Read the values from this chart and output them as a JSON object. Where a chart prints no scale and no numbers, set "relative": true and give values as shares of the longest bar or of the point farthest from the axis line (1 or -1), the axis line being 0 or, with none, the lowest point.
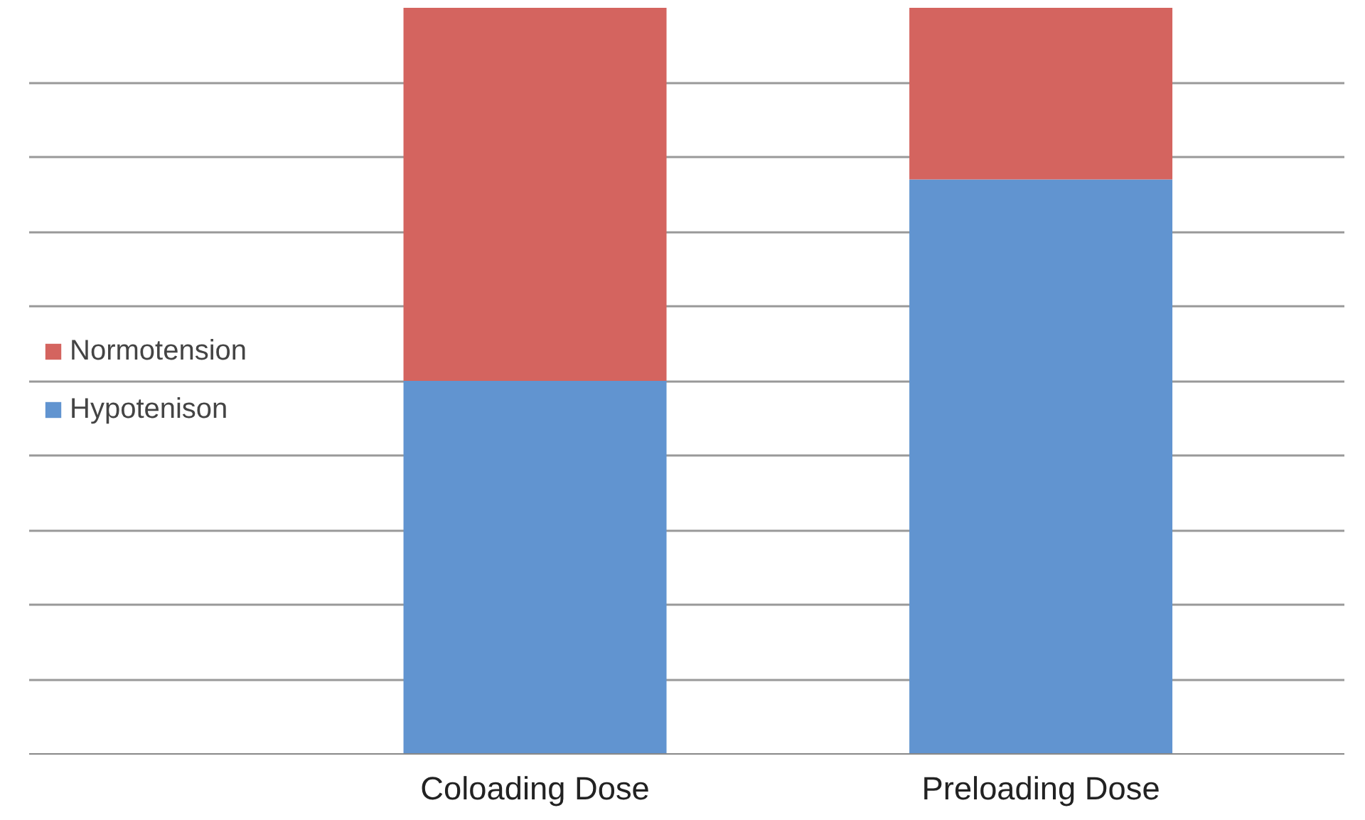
{
  "chart_data": {
    "type": "bar",
    "stacked": true,
    "relative": true,
    "categories": [
      "Coloading Dose",
      "Preloading Dose"
    ],
    "series": [
      {
        "name": "Hypotenison",
        "color": "#6194d0",
        "values": [
          0.5,
          0.77
        ]
      },
      {
        "name": "Normotension",
        "color": "#d4645f",
        "values": [
          0.5,
          0.23
        ]
      }
    ],
    "grid": "y",
    "legend": "left"
  }
}
